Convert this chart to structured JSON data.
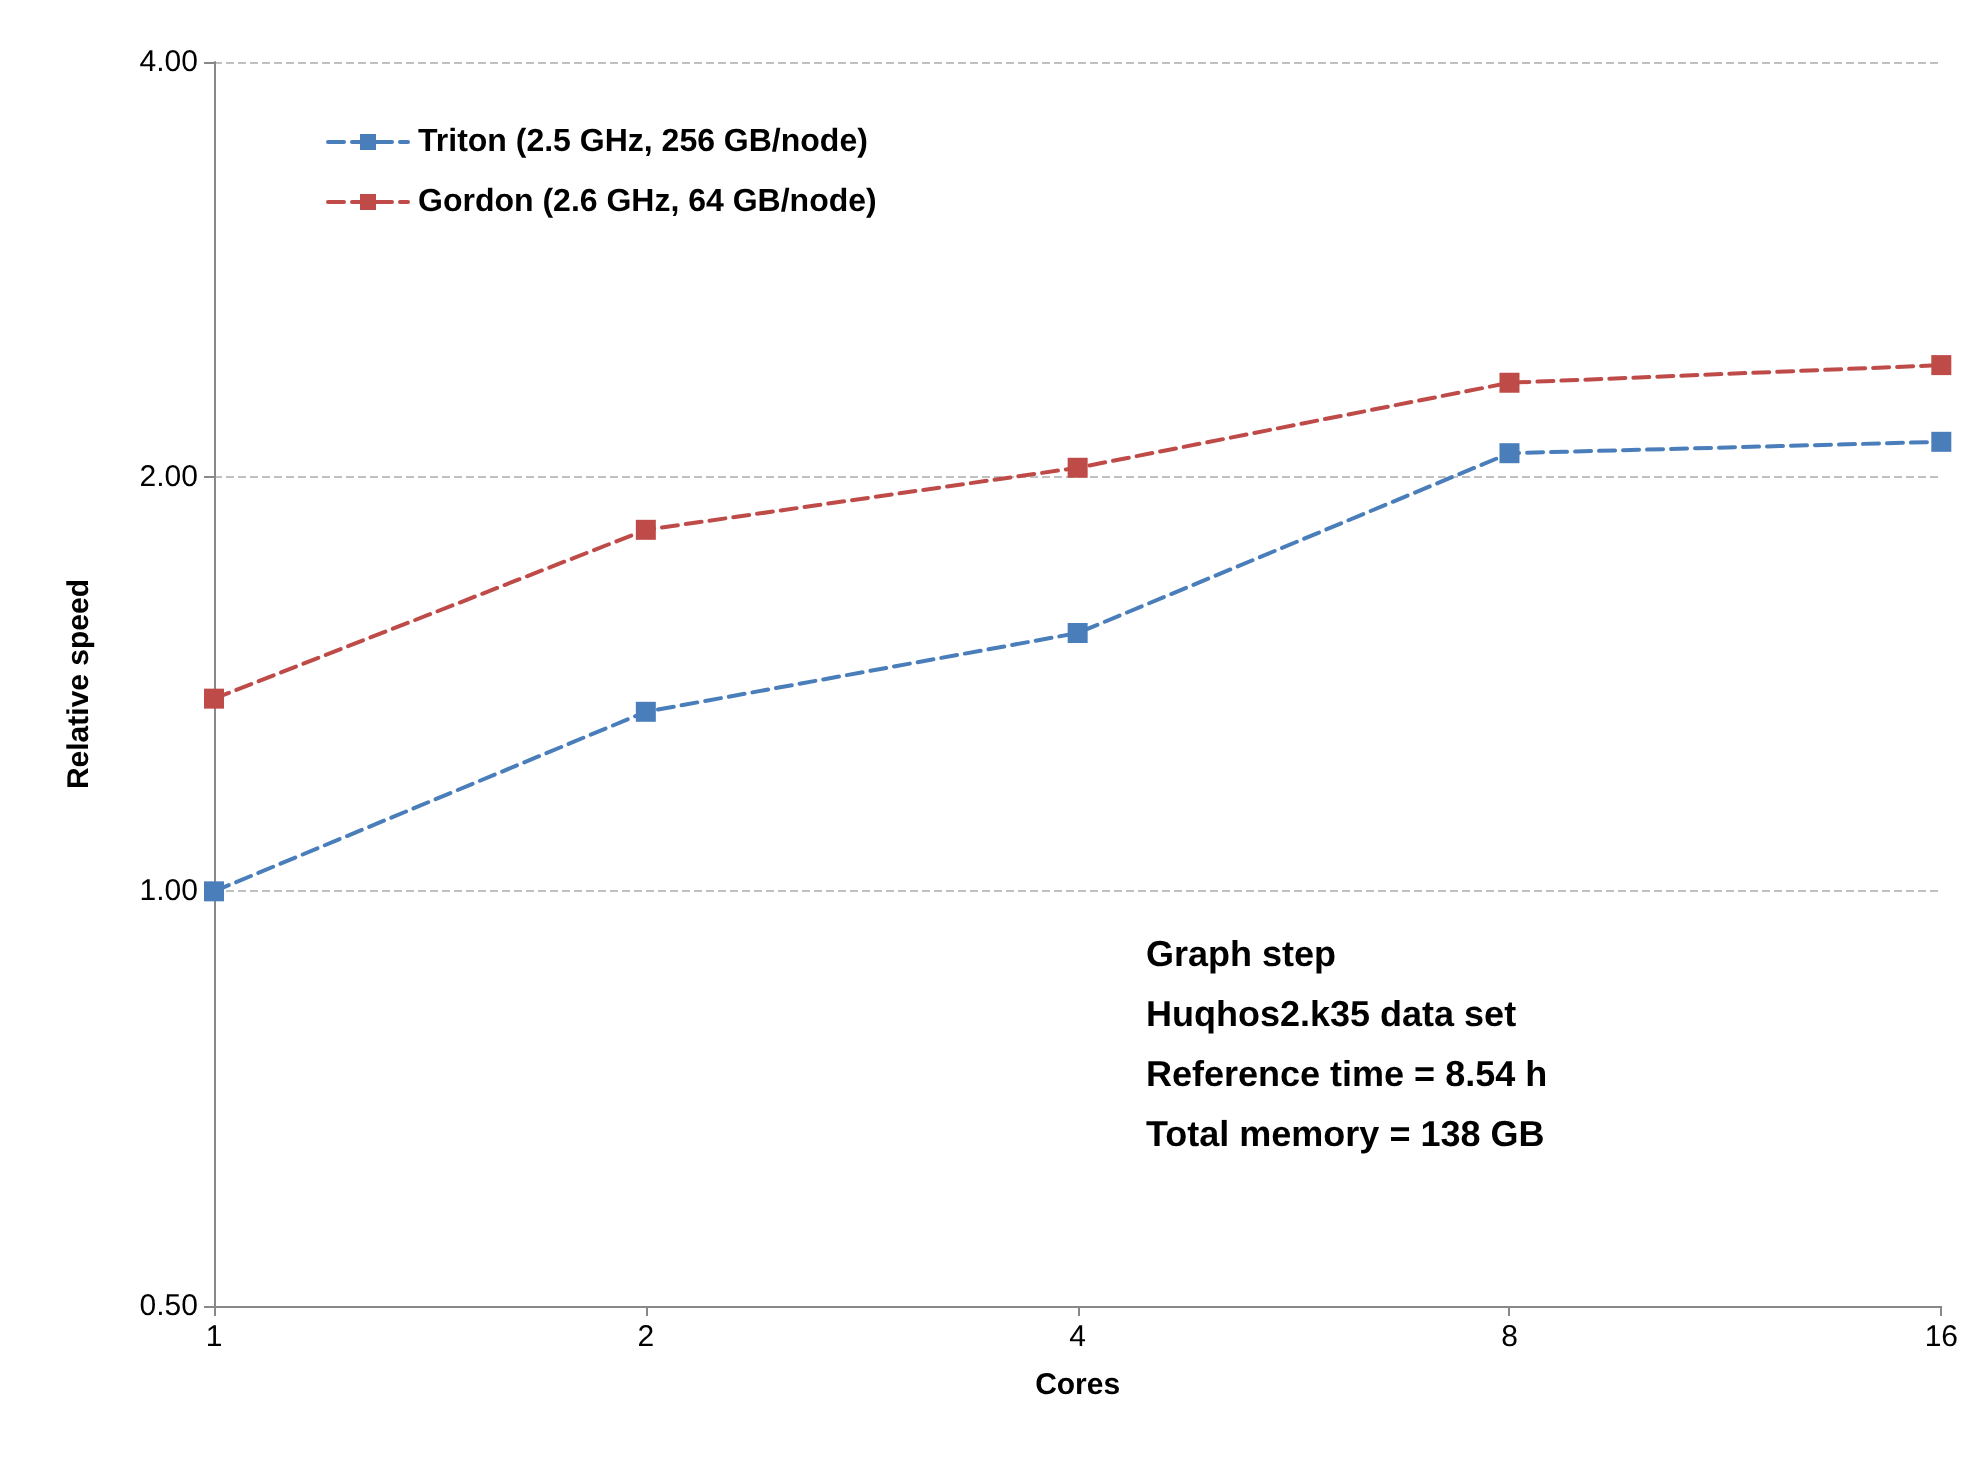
{
  "chart_data": {
    "type": "line",
    "xlabel": "Cores",
    "ylabel": "Relative speed",
    "x": [
      1,
      2,
      4,
      8,
      16
    ],
    "series": [
      {
        "name": "Triton (2.5 GHz, 256 GB/node)",
        "color": "#4a7ebb",
        "values": [
          1.0,
          1.35,
          1.54,
          2.08,
          2.12
        ]
      },
      {
        "name": "Gordon (2.6 GHz, 64 GB/node)",
        "color": "#be4b48",
        "values": [
          1.38,
          1.83,
          2.03,
          2.34,
          2.41
        ]
      }
    ],
    "log": "xy",
    "xlim": [
      1,
      16
    ],
    "xticks": [
      1,
      2,
      4,
      8,
      16
    ],
    "ylim": [
      0.5,
      4
    ],
    "yticks": [
      {
        "value": 0.5,
        "label": "0.50"
      },
      {
        "value": 1,
        "label": "1.00"
      },
      {
        "value": 2,
        "label": "2.00"
      },
      {
        "value": 4,
        "label": "4.00"
      }
    ],
    "grid": "y",
    "legend": "top left",
    "marker": "square",
    "line_style": "dashed",
    "annotations": [
      "Graph step",
      "Huqhos2.k35 data set",
      "Reference time = 8.54 h",
      "Total memory = 138 GB"
    ]
  }
}
